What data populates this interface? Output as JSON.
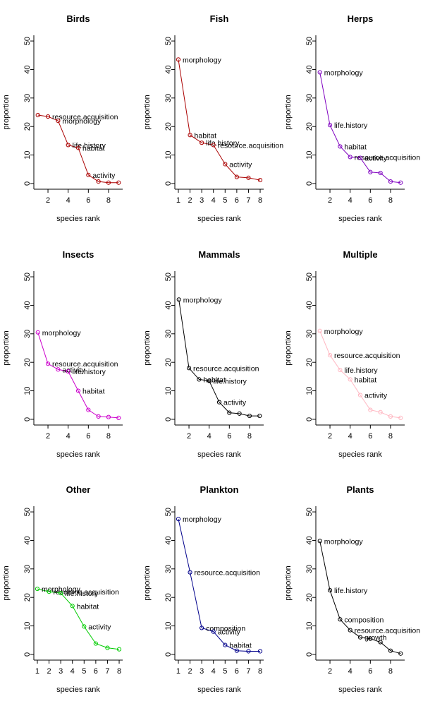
{
  "chart_data": [
    {
      "type": "line",
      "title": "Birds",
      "xlabel": "species rank",
      "ylabel": "proportion",
      "color": "#aa0000",
      "xlim": [
        0.6,
        9.4
      ],
      "ylim": [
        -2,
        52
      ],
      "xticks": [
        2,
        4,
        6,
        8
      ],
      "yticks": [
        0,
        10,
        20,
        30,
        40,
        50
      ],
      "x": [
        1,
        2,
        3,
        4,
        5,
        6,
        7,
        8,
        9
      ],
      "y": [
        24,
        23.5,
        22,
        13.5,
        12.5,
        3,
        0.7,
        0.3,
        0.3
      ],
      "labels": [
        "",
        "resource.acquisition",
        "morphology",
        "life.history",
        "habitat",
        "activity",
        "",
        "",
        ""
      ]
    },
    {
      "type": "line",
      "title": "Fish",
      "xlabel": "species rank",
      "ylabel": "proportion",
      "color": "#aa0000",
      "xlim": [
        0.7,
        8.3
      ],
      "ylim": [
        -2,
        52
      ],
      "xticks": [
        1,
        2,
        3,
        4,
        5,
        6,
        7,
        8
      ],
      "yticks": [
        0,
        10,
        20,
        30,
        40,
        50
      ],
      "x": [
        1,
        2,
        3,
        4,
        5,
        6,
        7,
        8
      ],
      "y": [
        43.5,
        17,
        14.3,
        13.5,
        6.8,
        2.3,
        2,
        1.2
      ],
      "labels": [
        "morphology",
        "habitat",
        "life.history",
        "resource.acquisition",
        "activity",
        "",
        "",
        ""
      ]
    },
    {
      "type": "line",
      "title": "Herps",
      "xlabel": "species rank",
      "ylabel": "proportion",
      "color": "#7f00c0",
      "xlim": [
        0.6,
        9.4
      ],
      "ylim": [
        -2,
        52
      ],
      "xticks": [
        2,
        4,
        6,
        8
      ],
      "yticks": [
        0,
        10,
        20,
        30,
        40,
        50
      ],
      "x": [
        1,
        2,
        3,
        4,
        5,
        6,
        7,
        8,
        9
      ],
      "y": [
        39,
        20.5,
        13,
        9.3,
        9,
        4,
        3.7,
        0.7,
        0.3
      ],
      "labels": [
        "morphology",
        "life.history",
        "habitat",
        "resource.acquisition",
        "activity",
        "",
        "",
        "",
        ""
      ]
    },
    {
      "type": "line",
      "title": "Insects",
      "xlabel": "species rank",
      "ylabel": "proportion",
      "color": "#cc00cc",
      "xlim": [
        0.6,
        9.4
      ],
      "ylim": [
        -2,
        52
      ],
      "xticks": [
        2,
        4,
        6,
        8
      ],
      "yticks": [
        0,
        10,
        20,
        30,
        40,
        50
      ],
      "x": [
        1,
        2,
        3,
        4,
        5,
        6,
        7,
        8,
        9
      ],
      "y": [
        30.5,
        19.5,
        17.5,
        16.8,
        10,
        3.3,
        1,
        0.8,
        0.5
      ],
      "labels": [
        "morphology",
        "resource.acquisition",
        "activity",
        "life.history",
        "habitat",
        "",
        "",
        "",
        ""
      ]
    },
    {
      "type": "line",
      "title": "Mammals",
      "xlabel": "species rank",
      "ylabel": "proportion",
      "color": "#000000",
      "xlim": [
        0.6,
        9.4
      ],
      "ylim": [
        -2,
        52
      ],
      "xticks": [
        2,
        4,
        6,
        8
      ],
      "yticks": [
        0,
        10,
        20,
        30,
        40,
        50
      ],
      "x": [
        1,
        2,
        3,
        4,
        5,
        6,
        7,
        8,
        9
      ],
      "y": [
        42,
        18,
        14,
        13.5,
        6,
        2.3,
        2,
        1.2,
        1.2
      ],
      "labels": [
        "morphology",
        "resource.acquisition",
        "habitat",
        "life.history",
        "activity",
        "",
        "",
        "",
        ""
      ]
    },
    {
      "type": "line",
      "title": "Multiple",
      "xlabel": "species rank",
      "ylabel": "proportion",
      "color": "#ffb6c1",
      "xlim": [
        0.6,
        9.4
      ],
      "ylim": [
        -2,
        52
      ],
      "xticks": [
        2,
        4,
        6,
        8
      ],
      "yticks": [
        0,
        10,
        20,
        30,
        40,
        50
      ],
      "x": [
        1,
        2,
        3,
        4,
        5,
        6,
        7,
        8,
        9
      ],
      "y": [
        31,
        22.5,
        17.3,
        14,
        8.5,
        3.3,
        2.5,
        1,
        0.5
      ],
      "labels": [
        "morphology",
        "resource.acquisition",
        "life.history",
        "habitat",
        "activity",
        "",
        "",
        "",
        ""
      ]
    },
    {
      "type": "line",
      "title": "Other",
      "xlabel": "species rank",
      "ylabel": "proportion",
      "color": "#00cc00",
      "xlim": [
        0.7,
        8.3
      ],
      "ylim": [
        -2,
        52
      ],
      "xticks": [
        1,
        2,
        3,
        4,
        5,
        6,
        7,
        8
      ],
      "yticks": [
        0,
        10,
        20,
        30,
        40,
        50
      ],
      "x": [
        1,
        2,
        3,
        4,
        5,
        6,
        7,
        8
      ],
      "y": [
        23,
        22,
        21.5,
        17,
        9.8,
        3.8,
        2.3,
        1.8
      ],
      "labels": [
        "morphology",
        "resource.acquisition",
        "life.history",
        "habitat",
        "activity",
        "",
        "",
        ""
      ]
    },
    {
      "type": "line",
      "title": "Plankton",
      "xlabel": "species rank",
      "ylabel": "proportion",
      "color": "#00008b",
      "xlim": [
        0.7,
        8.3
      ],
      "ylim": [
        -2,
        52
      ],
      "xticks": [
        1,
        2,
        3,
        4,
        5,
        6,
        7,
        8
      ],
      "yticks": [
        0,
        10,
        20,
        30,
        40,
        50
      ],
      "x": [
        1,
        2,
        3,
        4,
        5,
        6,
        7,
        8
      ],
      "y": [
        47.5,
        28.8,
        9.3,
        8,
        3.3,
        1.3,
        1.1,
        1.1
      ],
      "labels": [
        "morphology",
        "resource.acquisition",
        "composition",
        "activity",
        "habitat",
        "",
        "",
        ""
      ]
    },
    {
      "type": "line",
      "title": "Plants",
      "xlabel": "species rank",
      "ylabel": "proportion",
      "color": "#000000",
      "xlim": [
        0.6,
        9.4
      ],
      "ylim": [
        -2,
        52
      ],
      "xticks": [
        2,
        4,
        6,
        8
      ],
      "yticks": [
        0,
        10,
        20,
        30,
        40,
        50
      ],
      "x": [
        1,
        2,
        3,
        4,
        5,
        6,
        7,
        8,
        9
      ],
      "y": [
        39.8,
        22.5,
        12.3,
        8.5,
        6,
        5.5,
        4.3,
        1.3,
        0.3
      ],
      "labels": [
        "morphology",
        "life.history",
        "composition",
        "resource.acquisition",
        "growth",
        "",
        "",
        "",
        ""
      ]
    }
  ]
}
